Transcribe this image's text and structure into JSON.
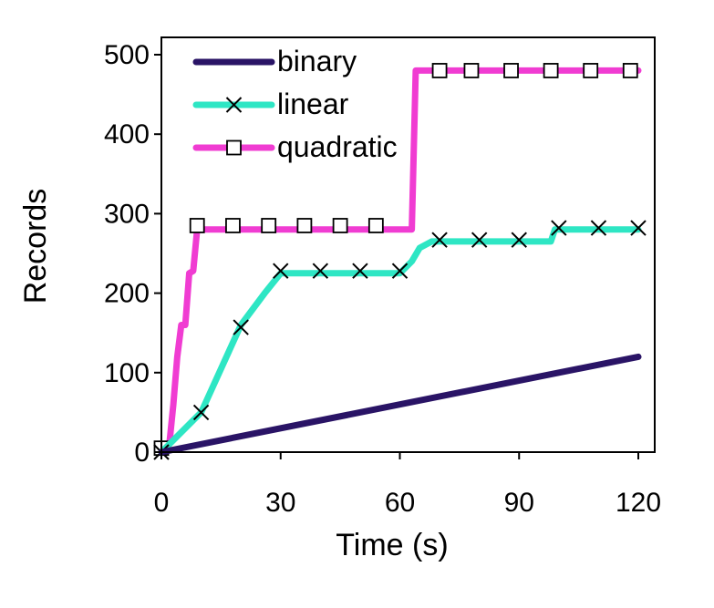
{
  "chart_data": {
    "type": "line",
    "title": "",
    "xlabel": "Time (s)",
    "ylabel": "Records",
    "xlim": [
      0,
      120
    ],
    "ylim": [
      0,
      500
    ],
    "xticks": [
      0,
      30,
      60,
      90,
      120
    ],
    "yticks": [
      0,
      100,
      200,
      300,
      400,
      500
    ],
    "x_tick_labels": [
      "0",
      "30",
      "60",
      "90",
      "120"
    ],
    "y_tick_labels": [
      "0",
      "100",
      "200",
      "300",
      "400",
      "500"
    ],
    "grid": false,
    "legend_position": "top-left",
    "series": [
      {
        "name": "binary",
        "color": "#2a1466",
        "marker": "none",
        "points": [
          [
            0,
            0
          ],
          [
            120,
            120
          ]
        ],
        "markers": []
      },
      {
        "name": "linear",
        "color": "#2ee6c4",
        "marker": "x",
        "points": [
          [
            0,
            0
          ],
          [
            10,
            50
          ],
          [
            20,
            160
          ],
          [
            26,
            200
          ],
          [
            30,
            225
          ],
          [
            60,
            225
          ],
          [
            63,
            240
          ],
          [
            65,
            257
          ],
          [
            68,
            265
          ],
          [
            98,
            265
          ],
          [
            99,
            280
          ],
          [
            120,
            280
          ]
        ],
        "markers": [
          [
            0,
            0
          ],
          [
            10,
            50
          ],
          [
            20,
            157
          ],
          [
            30,
            228
          ],
          [
            40,
            228
          ],
          [
            50,
            228
          ],
          [
            60,
            228
          ],
          [
            70,
            267
          ],
          [
            80,
            267
          ],
          [
            90,
            267
          ],
          [
            100,
            282
          ],
          [
            110,
            282
          ],
          [
            120,
            282
          ]
        ]
      },
      {
        "name": "quadratic",
        "color": "#f03cd2",
        "marker": "square",
        "points": [
          [
            0,
            0
          ],
          [
            2,
            10
          ],
          [
            3,
            60
          ],
          [
            4,
            120
          ],
          [
            5,
            160
          ],
          [
            6,
            160
          ],
          [
            7,
            225
          ],
          [
            8,
            228
          ],
          [
            9,
            280
          ],
          [
            10,
            280
          ],
          [
            63,
            280
          ],
          [
            64,
            480
          ],
          [
            120,
            480
          ]
        ],
        "markers": [
          [
            0,
            5
          ],
          [
            9,
            285
          ],
          [
            18,
            285
          ],
          [
            27,
            285
          ],
          [
            36,
            285
          ],
          [
            45,
            285
          ],
          [
            54,
            285
          ],
          [
            70,
            480
          ],
          [
            78,
            480
          ],
          [
            88,
            480
          ],
          [
            98,
            480
          ],
          [
            108,
            480
          ],
          [
            118,
            480
          ]
        ]
      }
    ]
  }
}
